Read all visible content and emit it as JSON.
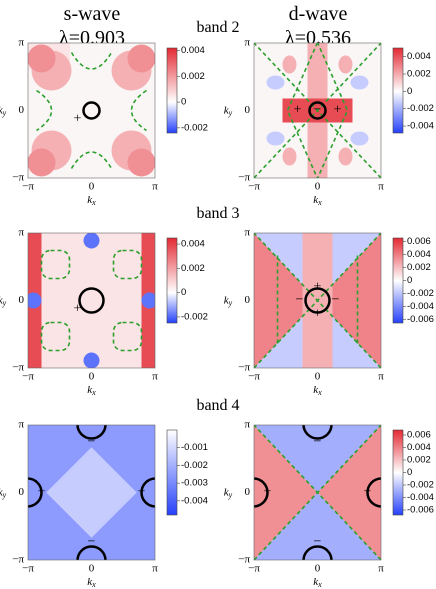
{
  "columns": [
    {
      "title": "s-wave",
      "coupling": "λ=0.903"
    },
    {
      "title": "d-wave",
      "coupling": "λ=0.536"
    }
  ],
  "axis": {
    "k": "k",
    "x": "x",
    "y": "y",
    "ticks": [
      "−π",
      "0",
      "π"
    ]
  },
  "rows": [
    {
      "label": "band 2",
      "panels": [
        {
          "signs": [
            "+"
          ],
          "colorbar": {
            "range": [
              -0.0024,
              0.0042
            ],
            "ticks": [
              0.004,
              0.002,
              0,
              -0.002
            ]
          }
        },
        {
          "signs": [
            "+",
            "+",
            "−"
          ],
          "colorbar": {
            "range": [
              -0.0048,
              0.005
            ],
            "ticks": [
              0.004,
              0.002,
              0,
              -0.002,
              -0.004
            ]
          }
        }
      ]
    },
    {
      "label": "band 3",
      "panels": [
        {
          "signs": [
            "+"
          ],
          "colorbar": {
            "range": [
              -0.0025,
              0.0045
            ],
            "ticks": [
              0.004,
              0.002,
              0,
              -0.002
            ]
          }
        },
        {
          "signs": [
            "+",
            "−",
            "−",
            "+"
          ],
          "colorbar": {
            "range": [
              -0.0065,
              0.0065
            ],
            "ticks": [
              0.006,
              0.004,
              0.002,
              0,
              -0.002,
              -0.004,
              -0.006
            ]
          }
        }
      ]
    },
    {
      "label": "band 4",
      "panels": [
        {
          "signs": [
            "−",
            "−",
            "+",
            "+"
          ],
          "colorbar": {
            "range": [
              -0.0048,
              0
            ],
            "ticks": [
              -0.001,
              -0.002,
              -0.003,
              -0.004
            ]
          }
        },
        {
          "signs": [
            "−",
            "−",
            "+",
            "+"
          ],
          "colorbar": {
            "range": [
              -0.0068,
              0.0068
            ],
            "ticks": [
              0.006,
              0.004,
              0.002,
              0,
              -0.002,
              -0.004,
              -0.006
            ]
          }
        }
      ]
    }
  ]
}
